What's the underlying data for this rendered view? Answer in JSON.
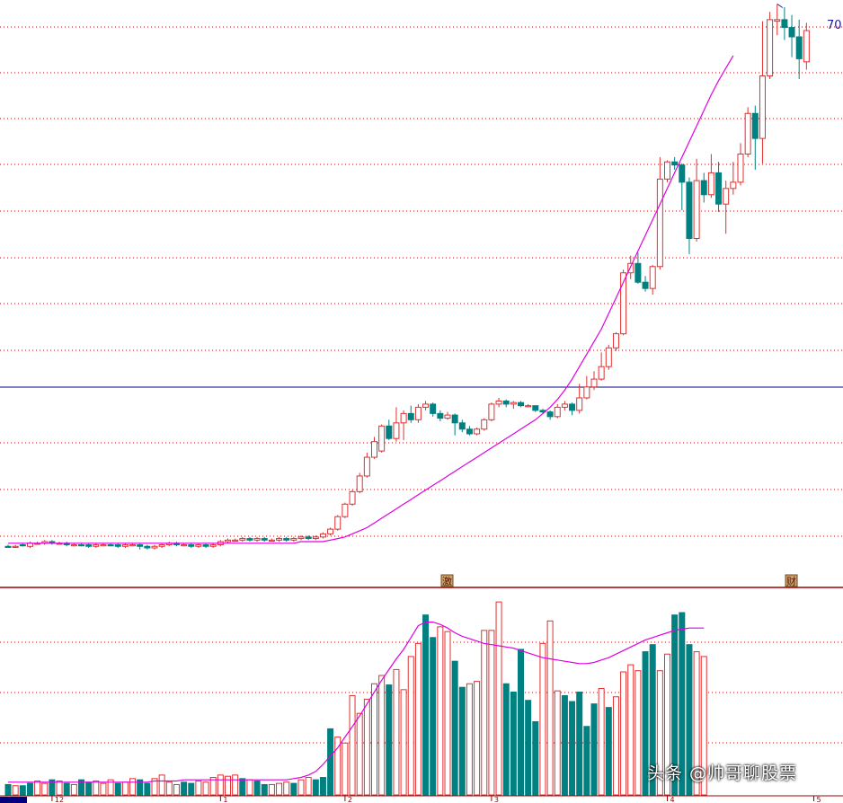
{
  "chart_data": {
    "type": "candlestick",
    "main_panel": {
      "price_label": "70",
      "ma_color": "#e000e0",
      "up_color": "#e03030",
      "down_color": "#008080",
      "hline_color": "#000080",
      "event_markers": [
        {
          "index": 60,
          "text": "激"
        },
        {
          "index": 107,
          "text": "财"
        }
      ],
      "candles": [
        [
          1,
          1,
          0,
          2,
          "d"
        ],
        [
          1,
          1,
          0,
          2,
          "u"
        ],
        [
          2,
          2,
          1,
          3,
          "d"
        ],
        [
          1,
          3,
          0,
          4,
          "u"
        ],
        [
          3,
          3,
          2,
          4,
          "u"
        ],
        [
          3,
          4,
          2,
          5,
          "u"
        ],
        [
          4,
          3,
          2,
          5,
          "d"
        ],
        [
          3,
          3,
          2,
          4,
          "u"
        ],
        [
          3,
          2,
          1,
          4,
          "d"
        ],
        [
          2,
          2,
          1,
          3,
          "u"
        ],
        [
          2,
          2,
          1,
          3,
          "d"
        ],
        [
          2,
          1,
          0,
          3,
          "d"
        ],
        [
          1,
          2,
          0,
          3,
          "u"
        ],
        [
          2,
          2,
          1,
          3,
          "u"
        ],
        [
          2,
          2,
          1,
          3,
          "d"
        ],
        [
          2,
          1,
          0,
          3,
          "d"
        ],
        [
          1,
          2,
          0,
          3,
          "u"
        ],
        [
          2,
          2,
          1,
          3,
          "u"
        ],
        [
          2,
          1,
          -1,
          3,
          "d"
        ],
        [
          1,
          0,
          -1,
          2,
          "d"
        ],
        [
          0,
          1,
          -1,
          2,
          "u"
        ],
        [
          1,
          2,
          0,
          3,
          "u"
        ],
        [
          2,
          3,
          1,
          4,
          "u"
        ],
        [
          3,
          2,
          1,
          4,
          "d"
        ],
        [
          2,
          2,
          1,
          3,
          "u"
        ],
        [
          2,
          1,
          0,
          3,
          "d"
        ],
        [
          1,
          2,
          0,
          3,
          "u"
        ],
        [
          2,
          1,
          0,
          3,
          "d"
        ],
        [
          1,
          2,
          0,
          3,
          "u"
        ],
        [
          2,
          4,
          1,
          5,
          "u"
        ],
        [
          4,
          5,
          3,
          6,
          "u"
        ],
        [
          5,
          5,
          4,
          6,
          "u"
        ],
        [
          5,
          6,
          4,
          7,
          "u"
        ],
        [
          6,
          5,
          4,
          7,
          "d"
        ],
        [
          5,
          6,
          4,
          7,
          "u"
        ],
        [
          6,
          5,
          4,
          7,
          "d"
        ],
        [
          5,
          5,
          4,
          6,
          "u"
        ],
        [
          5,
          6,
          4,
          7,
          "u"
        ],
        [
          6,
          5,
          4,
          7,
          "d"
        ],
        [
          5,
          6,
          4,
          7,
          "u"
        ],
        [
          6,
          7,
          5,
          8,
          "u"
        ],
        [
          7,
          6,
          5,
          8,
          "d"
        ],
        [
          6,
          7,
          5,
          8,
          "u"
        ],
        [
          7,
          9,
          6,
          10,
          "u"
        ],
        [
          9,
          12,
          8,
          13,
          "u"
        ],
        [
          12,
          20,
          11,
          21,
          "u"
        ],
        [
          20,
          28,
          19,
          29,
          "u"
        ],
        [
          28,
          36,
          27,
          37,
          "u"
        ],
        [
          36,
          46,
          35,
          48,
          "u"
        ],
        [
          46,
          58,
          45,
          61,
          "u"
        ],
        [
          58,
          68,
          57,
          71,
          "u"
        ],
        [
          62,
          78,
          61,
          79,
          "u"
        ],
        [
          78,
          70,
          69,
          82,
          "d"
        ],
        [
          70,
          80,
          68,
          90,
          "u"
        ],
        [
          80,
          86,
          69,
          88,
          "u"
        ],
        [
          86,
          82,
          80,
          91,
          "d"
        ],
        [
          82,
          90,
          80,
          92,
          "u"
        ],
        [
          90,
          92,
          88,
          94,
          "u"
        ],
        [
          92,
          86,
          84,
          93,
          "d"
        ],
        [
          86,
          83,
          81,
          88,
          "d"
        ],
        [
          83,
          85,
          82,
          87,
          "u"
        ],
        [
          85,
          80,
          72,
          86,
          "d"
        ],
        [
          80,
          76,
          74,
          82,
          "d"
        ],
        [
          76,
          73,
          72,
          78,
          "d"
        ],
        [
          73,
          76,
          72,
          77,
          "u"
        ],
        [
          76,
          82,
          75,
          83,
          "u"
        ],
        [
          82,
          92,
          81,
          93,
          "u"
        ],
        [
          92,
          94,
          90,
          96,
          "u"
        ],
        [
          94,
          92,
          90,
          95,
          "d"
        ],
        [
          92,
          93,
          89,
          94,
          "u"
        ],
        [
          93,
          91,
          90,
          94,
          "d"
        ],
        [
          91,
          91,
          90,
          92,
          "u"
        ],
        [
          91,
          88,
          87,
          90,
          "d"
        ],
        [
          88,
          87,
          86,
          89,
          "d"
        ],
        [
          87,
          84,
          82,
          88,
          "d"
        ],
        [
          84,
          90,
          83,
          92,
          "u"
        ],
        [
          90,
          92,
          88,
          94,
          "u"
        ],
        [
          92,
          88,
          85,
          93,
          "d"
        ],
        [
          88,
          96,
          86,
          105,
          "u"
        ],
        [
          96,
          103,
          95,
          110,
          "u"
        ],
        [
          103,
          108,
          101,
          113,
          "u"
        ],
        [
          108,
          116,
          107,
          125,
          "u"
        ],
        [
          116,
          128,
          114,
          130,
          "u"
        ],
        [
          128,
          137,
          126,
          138,
          "u"
        ],
        [
          137,
          176,
          136,
          178,
          "u"
        ],
        [
          176,
          182,
          172,
          187,
          "u"
        ],
        [
          182,
          170,
          169,
          189,
          "d"
        ],
        [
          170,
          166,
          164,
          174,
          "d"
        ],
        [
          166,
          180,
          162,
          181,
          "u"
        ],
        [
          180,
          236,
          178,
          250,
          "u"
        ],
        [
          236,
          247,
          234,
          248,
          "u"
        ],
        [
          247,
          245,
          242,
          250,
          "d"
        ],
        [
          245,
          234,
          216,
          246,
          "d"
        ],
        [
          234,
          198,
          188,
          237,
          "d"
        ],
        [
          198,
          235,
          196,
          249,
          "u"
        ],
        [
          235,
          226,
          221,
          240,
          "d"
        ],
        [
          226,
          240,
          224,
          252,
          "u"
        ],
        [
          240,
          220,
          215,
          247,
          "d"
        ],
        [
          220,
          230,
          201,
          235,
          "u"
        ],
        [
          230,
          234,
          226,
          247,
          "u"
        ],
        [
          234,
          252,
          232,
          259,
          "u"
        ],
        [
          252,
          278,
          250,
          282,
          "u"
        ],
        [
          278,
          262,
          242,
          283,
          "d"
        ],
        [
          262,
          302,
          246,
          337,
          "u"
        ],
        [
          302,
          338,
          300,
          343,
          "u"
        ],
        [
          337,
          338,
          328,
          348,
          "u"
        ],
        [
          338,
          333,
          325,
          346,
          "d"
        ],
        [
          333,
          327,
          314,
          341,
          "d"
        ],
        [
          327,
          313,
          300,
          338,
          "d"
        ],
        [
          311,
          331,
          306,
          336,
          "u"
        ]
      ],
      "ma": [
        3,
        3,
        3,
        3,
        3,
        3,
        3,
        3,
        3,
        3,
        3,
        3,
        3,
        3,
        3,
        3,
        3,
        3,
        3,
        3,
        3,
        3,
        3,
        3,
        3,
        3,
        3,
        3,
        3,
        3,
        3,
        3,
        3,
        3,
        3,
        3,
        3,
        3,
        3,
        3,
        4,
        4,
        4,
        4,
        5,
        6,
        7,
        9,
        11,
        13,
        16,
        19,
        22,
        25,
        28,
        31,
        34,
        37,
        40,
        43,
        46,
        49,
        52,
        55,
        58,
        61,
        64,
        67,
        70,
        73,
        76,
        79,
        82,
        86,
        90,
        95,
        101,
        108,
        116,
        124,
        132,
        140,
        150,
        160,
        170,
        180,
        190,
        200,
        210,
        220,
        230,
        240,
        250,
        260,
        270,
        280,
        290,
        299,
        307,
        315
      ]
    },
    "volume_panel": {
      "ma_color": "#e000e0",
      "volume": [
        [
          8,
          "d"
        ],
        [
          7,
          "u"
        ],
        [
          7,
          "d"
        ],
        [
          9,
          "d"
        ],
        [
          11,
          "u"
        ],
        [
          9,
          "u"
        ],
        [
          12,
          "d"
        ],
        [
          11,
          "u"
        ],
        [
          9,
          "d"
        ],
        [
          8,
          "u"
        ],
        [
          12,
          "d"
        ],
        [
          10,
          "d"
        ],
        [
          11,
          "u"
        ],
        [
          9,
          "u"
        ],
        [
          12,
          "u"
        ],
        [
          9,
          "d"
        ],
        [
          10,
          "u"
        ],
        [
          13,
          "u"
        ],
        [
          12,
          "d"
        ],
        [
          9,
          "d"
        ],
        [
          13,
          "u"
        ],
        [
          16,
          "u"
        ],
        [
          10,
          "u"
        ],
        [
          8,
          "u"
        ],
        [
          10,
          "d"
        ],
        [
          9,
          "d"
        ],
        [
          11,
          "u"
        ],
        [
          10,
          "u"
        ],
        [
          14,
          "u"
        ],
        [
          16,
          "u"
        ],
        [
          15,
          "u"
        ],
        [
          16,
          "u"
        ],
        [
          13,
          "d"
        ],
        [
          12,
          "u"
        ],
        [
          11,
          "d"
        ],
        [
          8,
          "d"
        ],
        [
          8,
          "u"
        ],
        [
          9,
          "u"
        ],
        [
          10,
          "u"
        ],
        [
          9,
          "d"
        ],
        [
          12,
          "u"
        ],
        [
          14,
          "u"
        ],
        [
          12,
          "d"
        ],
        [
          14,
          "d"
        ],
        [
          55,
          "d"
        ],
        [
          48,
          "u"
        ],
        [
          43,
          "u"
        ],
        [
          83,
          "u"
        ],
        [
          68,
          "u"
        ],
        [
          80,
          "u"
        ],
        [
          93,
          "u"
        ],
        [
          100,
          "u"
        ],
        [
          92,
          "d"
        ],
        [
          105,
          "u"
        ],
        [
          88,
          "u"
        ],
        [
          116,
          "u"
        ],
        [
          127,
          "u"
        ],
        [
          151,
          "d"
        ],
        [
          132,
          "d"
        ],
        [
          141,
          "u"
        ],
        [
          137,
          "u"
        ],
        [
          112,
          "d"
        ],
        [
          90,
          "d"
        ],
        [
          93,
          "u"
        ],
        [
          95,
          "u"
        ],
        [
          138,
          "u"
        ],
        [
          138,
          "u"
        ],
        [
          162,
          "u"
        ],
        [
          93,
          "d"
        ],
        [
          86,
          "d"
        ],
        [
          122,
          "d"
        ],
        [
          79,
          "d"
        ],
        [
          61,
          "d"
        ],
        [
          127,
          "u"
        ],
        [
          146,
          "u"
        ],
        [
          87,
          "u"
        ],
        [
          83,
          "d"
        ],
        [
          78,
          "d"
        ],
        [
          86,
          "d"
        ],
        [
          57,
          "d"
        ],
        [
          76,
          "d"
        ],
        [
          89,
          "u"
        ],
        [
          73,
          "d"
        ],
        [
          82,
          "u"
        ],
        [
          103,
          "u"
        ],
        [
          109,
          "u"
        ],
        [
          104,
          "u"
        ],
        [
          120,
          "d"
        ],
        [
          126,
          "d"
        ],
        [
          104,
          "u"
        ],
        [
          118,
          "u"
        ],
        [
          151,
          "d"
        ],
        [
          153,
          "d"
        ],
        [
          126,
          "d"
        ],
        [
          120,
          "u"
        ],
        [
          116,
          "u"
        ]
      ],
      "ma": [
        10,
        10,
        10,
        10,
        10,
        10,
        10,
        10,
        10,
        10,
        10,
        10,
        10,
        10,
        10,
        10,
        10,
        10,
        10,
        10,
        11,
        11,
        11,
        11,
        12,
        12,
        12,
        12,
        12,
        12,
        12,
        12,
        12,
        12,
        12,
        12,
        12,
        12,
        12,
        13,
        14,
        16,
        19,
        25,
        32,
        39,
        48,
        57,
        66,
        76,
        86,
        96,
        105,
        114,
        122,
        132,
        142,
        145,
        145,
        143,
        140,
        136,
        133,
        131,
        129,
        127,
        126,
        125,
        124,
        123,
        121,
        119,
        117,
        115,
        114,
        113,
        112,
        111,
        110,
        110,
        111,
        113,
        115,
        118,
        121,
        124,
        127,
        130,
        132,
        134,
        136,
        138,
        139,
        140,
        140,
        140
      ]
    },
    "x_tick_labels": [
      "12",
      "1",
      "2",
      "3",
      "4",
      "5"
    ]
  },
  "watermark": "头条 @帅哥聊股票"
}
